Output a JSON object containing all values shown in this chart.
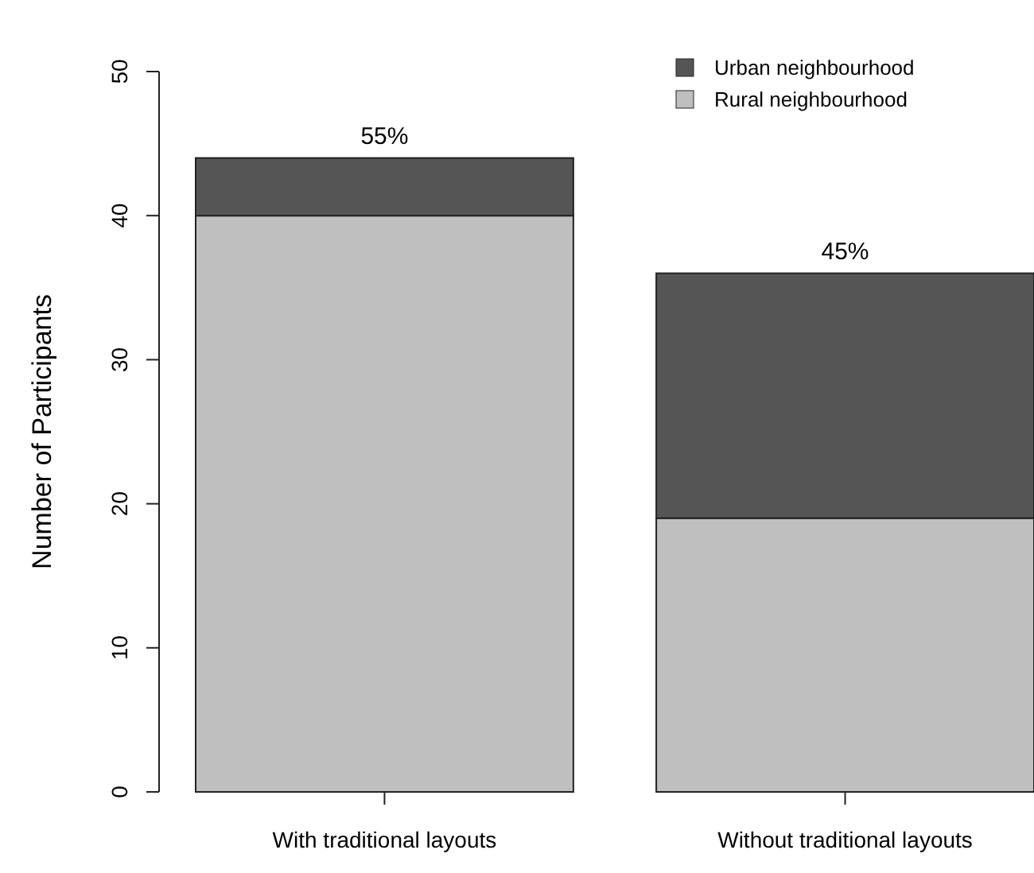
{
  "chart_data": {
    "type": "bar",
    "ylabel": "Number of Participants",
    "categories": [
      "With traditional layouts",
      "Without traditional layouts"
    ],
    "series": [
      {
        "name": "Rural neighbourhood",
        "color": "#bfbfbf",
        "values": [
          40,
          19
        ]
      },
      {
        "name": "Urban neighbourhood",
        "color": "#555555",
        "values": [
          4,
          17
        ]
      }
    ],
    "stacked": true,
    "annotations": [
      {
        "text": "55%",
        "x": "With traditional layouts",
        "y": 44
      },
      {
        "text": "45%",
        "x": "Without traditional layouts",
        "y": 36
      }
    ],
    "ylim": [
      0,
      50
    ],
    "yticks": [
      0,
      10,
      20,
      30,
      40,
      50
    ],
    "legend": "top right",
    "grid": false
  }
}
